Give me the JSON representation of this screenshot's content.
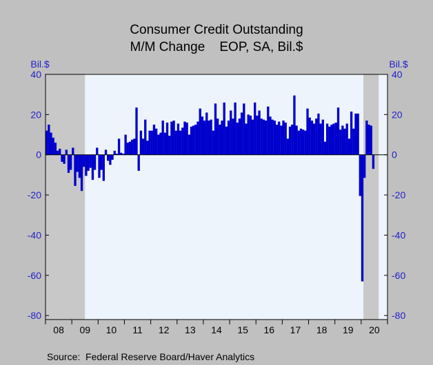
{
  "chart_data": {
    "type": "bar",
    "title": "Consumer Credit Outstanding",
    "subtitle": "M/M Change    EOP, SA, Bil.$",
    "ylabel_left": "Bil.$",
    "ylabel_right": "Bil.$",
    "source": "Source:  Federal Reserve Board/Haver Analytics",
    "ylim": [
      -82,
      40
    ],
    "yticks": [
      "40",
      "20",
      "0",
      "-20",
      "-40",
      "-60",
      "-80"
    ],
    "ytick_values": [
      40,
      20,
      0,
      -20,
      -40,
      -60,
      -80
    ],
    "xticks": [
      "08",
      "09",
      "10",
      "11",
      "12",
      "13",
      "14",
      "15",
      "16",
      "17",
      "18",
      "19",
      "20"
    ],
    "start_year": 2008,
    "start_month": 1,
    "bar_color": "#0000cd",
    "plot_background": "#eef4fc",
    "recession_color": "#c8c8c8",
    "recessions": [
      [
        "2008-01",
        "2009-06"
      ],
      [
        "2020-02",
        "2020-08"
      ]
    ],
    "monthly_change": [
      12.0,
      15.0,
      11.0,
      8.5,
      6.0,
      2.0,
      3.0,
      -3.5,
      -4.5,
      2.5,
      -9.0,
      -7.5,
      3.5,
      -15.5,
      -8.5,
      -11.5,
      -18.0,
      -6.0,
      -10.5,
      -8.0,
      -6.5,
      -12.5,
      -7.5,
      3.5,
      -11.5,
      -7.5,
      -13.0,
      2.5,
      -3.0,
      -5.0,
      -2.5,
      2.0,
      0.5,
      8.0,
      1.0,
      0.5,
      10.0,
      6.0,
      6.5,
      7.5,
      8.0,
      23.5,
      -8.0,
      12.0,
      8.0,
      17.5,
      7.0,
      12.0,
      12.0,
      15.0,
      13.0,
      10.0,
      11.0,
      17.0,
      11.0,
      16.0,
      9.5,
      16.5,
      17.0,
      12.0,
      15.5,
      12.0,
      13.5,
      16.5,
      16.0,
      10.0,
      14.0,
      14.5,
      15.0,
      16.5,
      23.0,
      19.0,
      17.0,
      21.0,
      17.0,
      17.5,
      12.0,
      25.5,
      18.0,
      15.0,
      17.0,
      26.0,
      14.0,
      17.0,
      22.0,
      18.0,
      26.0,
      16.0,
      18.0,
      21.0,
      25.5,
      15.5,
      20.0,
      19.5,
      17.5,
      26.0,
      19.5,
      22.0,
      18.0,
      17.5,
      17.0,
      24.0,
      19.0,
      17.5,
      17.0,
      15.0,
      16.5,
      14.5,
      17.0,
      16.0,
      8.0,
      14.0,
      15.0,
      29.5,
      14.5,
      12.0,
      13.0,
      12.5,
      12.0,
      23.0,
      18.5,
      17.0,
      15.5,
      18.0,
      20.5,
      15.5,
      17.5,
      6.5,
      15.5,
      14.0,
      15.0,
      15.5,
      16.0,
      23.5,
      12.5,
      14.5,
      13.0,
      15.5,
      8.0,
      21.5,
      13.0,
      20.5,
      20.5,
      -20.5,
      -63.0,
      -11.5,
      17.0,
      15.0,
      14.5,
      -7.0
    ]
  }
}
